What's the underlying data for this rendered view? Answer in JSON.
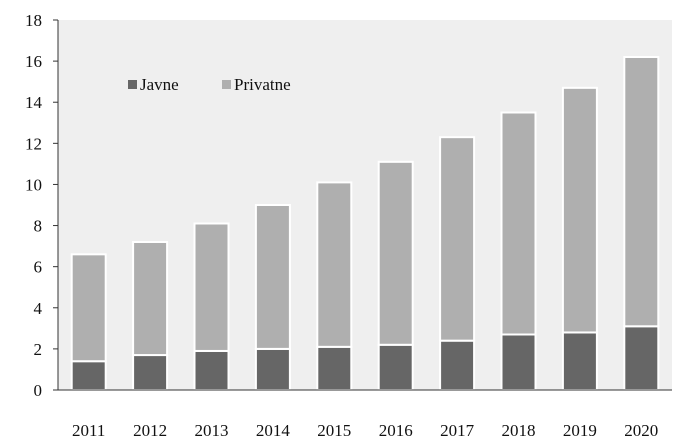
{
  "chart_data": {
    "type": "bar",
    "stacked": true,
    "categories": [
      "2011",
      "2012",
      "2013",
      "2014",
      "2015",
      "2016",
      "2017",
      "2018",
      "2019",
      "2020"
    ],
    "series": [
      {
        "name": "Javne",
        "color": "#666666",
        "values": [
          1.4,
          1.7,
          1.9,
          2.0,
          2.1,
          2.2,
          2.4,
          2.7,
          2.8,
          3.1
        ]
      },
      {
        "name": "Privatne",
        "color": "#afafaf",
        "values": [
          5.2,
          5.5,
          6.2,
          7.0,
          8.0,
          8.9,
          9.9,
          10.8,
          11.9,
          13.1
        ]
      }
    ],
    "ylim": [
      0,
      18
    ],
    "yticks": [
      0,
      2,
      4,
      6,
      8,
      10,
      12,
      14,
      16,
      18
    ],
    "grid": false,
    "plot_background": "#efefef",
    "legend_position": "top-left"
  }
}
